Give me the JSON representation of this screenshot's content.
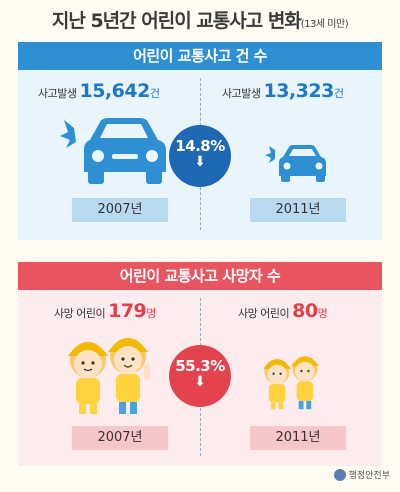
{
  "title": {
    "main": "지난 5년간 어린이 교통사고 변화",
    "sub": "(13세 미만)"
  },
  "section1": {
    "header": "어린이 교통사고 건 수",
    "left": {
      "label": "사고발생",
      "value": "15,642",
      "unit": "건",
      "year": "2007년"
    },
    "right": {
      "label": "사고발생",
      "value": "13,323",
      "unit": "건",
      "year": "2011년"
    },
    "change": "14.8%",
    "accent": "#2e8fd3"
  },
  "section2": {
    "header": "어린이 교통사고 사망자 수",
    "left": {
      "label": "사망 어린이",
      "value": "179",
      "unit": "명",
      "year": "2007년"
    },
    "right": {
      "label": "사망 어린이",
      "value": "80",
      "unit": "명",
      "year": "2011년"
    },
    "change": "55.3%",
    "accent": "#e8555f"
  },
  "footer": {
    "org": "행정안전부"
  },
  "icons": [
    "car-icon",
    "small-car-icon",
    "child-icon",
    "down-arrow-icon",
    "ministry-logo-icon"
  ]
}
